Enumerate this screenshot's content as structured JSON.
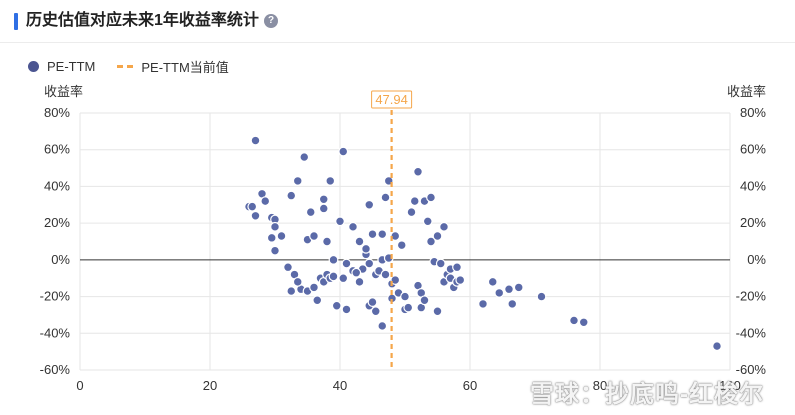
{
  "header": {
    "title": "历史估值对应未来1年收益率统计",
    "help_icon": "question-icon",
    "help_glyph": "?"
  },
  "legend": {
    "series_label": "PE-TTM",
    "line_label": "PE-TTM当前值"
  },
  "watermark": "雪球：抄底鸣-红梭尔",
  "chart_data": {
    "type": "scatter",
    "title": "历史估值对应未来1年收益率统计",
    "ylabel_left": "收益率",
    "ylabel_right": "收益率",
    "xlim": [
      0,
      100
    ],
    "ylim": [
      -60,
      80
    ],
    "x_ticks": [
      "0",
      "20",
      "40",
      "60",
      "80",
      "100"
    ],
    "y_ticks": [
      "80%",
      "60%",
      "40%",
      "20%",
      "0%",
      "-20%",
      "-40%",
      "-60%"
    ],
    "y_tick_values": [
      80,
      60,
      40,
      20,
      0,
      -20,
      -40,
      -60
    ],
    "x_tick_values": [
      0,
      20,
      40,
      60,
      80,
      100
    ],
    "grid": true,
    "legend_position": "top-left",
    "colors": {
      "point": "#5b6aa8",
      "current_line": "#f5a64a",
      "zero_line": "#333333",
      "grid": "#e6e6e6"
    },
    "current_value": {
      "x": 47.94,
      "label": "47.94"
    },
    "series": [
      {
        "name": "PE-TTM",
        "points": [
          [
            27.0,
            65
          ],
          [
            26.0,
            29
          ],
          [
            26.5,
            29
          ],
          [
            27.0,
            24
          ],
          [
            28.0,
            36
          ],
          [
            28.5,
            32
          ],
          [
            29.5,
            23
          ],
          [
            30.0,
            22
          ],
          [
            30.0,
            18
          ],
          [
            29.5,
            12
          ],
          [
            30.0,
            5
          ],
          [
            31.0,
            13
          ],
          [
            32.0,
            -4
          ],
          [
            33.0,
            -8
          ],
          [
            32.5,
            -17
          ],
          [
            34.0,
            -16
          ],
          [
            33.5,
            -12
          ],
          [
            35.0,
            -17
          ],
          [
            36.0,
            -15
          ],
          [
            36.5,
            -22
          ],
          [
            37.0,
            -10
          ],
          [
            37.5,
            -12
          ],
          [
            38.0,
            -8
          ],
          [
            38.5,
            -10
          ],
          [
            39.0,
            -9
          ],
          [
            32.5,
            35
          ],
          [
            33.5,
            43
          ],
          [
            34.5,
            56
          ],
          [
            35.0,
            11
          ],
          [
            35.5,
            26
          ],
          [
            36.0,
            13
          ],
          [
            37.5,
            33
          ],
          [
            37.5,
            28
          ],
          [
            38.0,
            10
          ],
          [
            38.5,
            43
          ],
          [
            39.0,
            0
          ],
          [
            40.0,
            21
          ],
          [
            40.5,
            59
          ],
          [
            41.0,
            -2
          ],
          [
            41.0,
            -27
          ],
          [
            42.0,
            18
          ],
          [
            42.0,
            -6
          ],
          [
            43.0,
            -12
          ],
          [
            43.5,
            -5
          ],
          [
            44.0,
            3
          ],
          [
            44.5,
            -2
          ],
          [
            44.5,
            -25
          ],
          [
            45.0,
            -23
          ],
          [
            45.5,
            -8
          ],
          [
            44.5,
            30
          ],
          [
            45.0,
            14
          ],
          [
            45.5,
            -28
          ],
          [
            46.0,
            -6
          ],
          [
            46.5,
            0
          ],
          [
            46.5,
            14
          ],
          [
            46.5,
            -36
          ],
          [
            47.0,
            -8
          ],
          [
            47.0,
            34
          ],
          [
            47.5,
            43
          ],
          [
            47.5,
            1
          ],
          [
            48.0,
            -13
          ],
          [
            48.0,
            -21
          ],
          [
            48.5,
            -11
          ],
          [
            49.0,
            -18
          ],
          [
            50.0,
            -20
          ],
          [
            50.0,
            -27
          ],
          [
            50.5,
            -26
          ],
          [
            51.0,
            26
          ],
          [
            51.5,
            32
          ],
          [
            52.0,
            -14
          ],
          [
            52.5,
            -18
          ],
          [
            52.5,
            -26
          ],
          [
            52.0,
            48
          ],
          [
            53.0,
            32
          ],
          [
            53.5,
            21
          ],
          [
            54.0,
            34
          ],
          [
            54.0,
            10
          ],
          [
            54.5,
            -1
          ],
          [
            55.0,
            13
          ],
          [
            55.0,
            -28
          ],
          [
            55.5,
            -2
          ],
          [
            56.0,
            18
          ],
          [
            56.0,
            -12
          ],
          [
            56.5,
            -8
          ],
          [
            57.0,
            -5
          ],
          [
            57.0,
            -10
          ],
          [
            57.5,
            -15
          ],
          [
            58.0,
            -4
          ],
          [
            58.0,
            -12
          ],
          [
            58.5,
            -11
          ],
          [
            62.0,
            -24
          ],
          [
            63.5,
            -12
          ],
          [
            64.5,
            -18
          ],
          [
            66.0,
            -16
          ],
          [
            66.5,
            -24
          ],
          [
            67.5,
            -15
          ],
          [
            71.0,
            -20
          ],
          [
            76.0,
            -33
          ],
          [
            77.5,
            -34
          ],
          [
            98.0,
            -47
          ],
          [
            40.5,
            -10
          ],
          [
            42.5,
            -7
          ],
          [
            39.5,
            -25
          ],
          [
            48.5,
            13
          ],
          [
            49.5,
            8
          ],
          [
            53.0,
            -22
          ],
          [
            43.0,
            10
          ],
          [
            44.0,
            6
          ]
        ]
      }
    ]
  }
}
